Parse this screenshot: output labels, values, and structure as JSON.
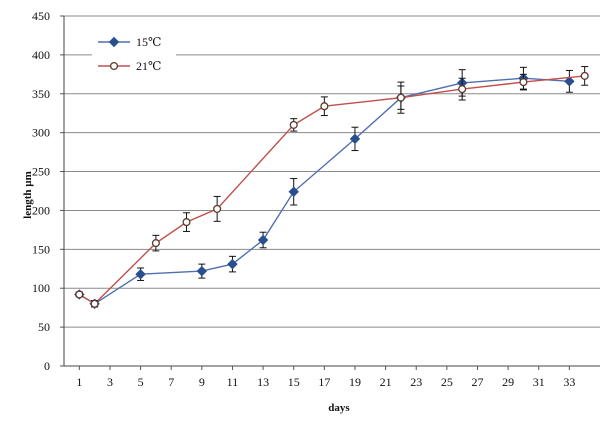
{
  "chart_data": {
    "type": "line",
    "title": "",
    "xlabel": "days",
    "ylabel": "length µm",
    "x_ticks": [
      1,
      3,
      5,
      7,
      9,
      11,
      13,
      15,
      17,
      19,
      21,
      23,
      25,
      27,
      29,
      31,
      33
    ],
    "x_tick_labels": [
      "1",
      "3",
      "5",
      "7",
      "9",
      "11",
      "13",
      "15",
      "17",
      "19",
      "21",
      "23",
      "25",
      "27",
      "29",
      "31",
      "33"
    ],
    "xlim": [
      0,
      35
    ],
    "ylim": [
      0,
      450
    ],
    "y_ticks": [
      0,
      50,
      100,
      150,
      200,
      250,
      300,
      350,
      400,
      450
    ],
    "y_tick_labels": [
      "0",
      "50",
      "100",
      "150",
      "200",
      "250",
      "300",
      "350",
      "400",
      "450"
    ],
    "grid": "horizontal",
    "legend": "top-left",
    "series": [
      {
        "name": "15℃",
        "color": "#4f6fb0",
        "marker": "diamond",
        "x": [
          1,
          2,
          5,
          9,
          11,
          13,
          15,
          19,
          22,
          26,
          30,
          33
        ],
        "y": [
          92,
          80,
          118,
          122,
          131,
          162,
          224,
          292,
          345,
          364,
          370,
          366
        ],
        "error": [
          3,
          4,
          8,
          9,
          10,
          10,
          17,
          15,
          20,
          17,
          14,
          14
        ]
      },
      {
        "name": "21℃",
        "color": "#c0504d",
        "marker": "circle-open",
        "x": [
          1,
          2,
          6,
          8,
          10,
          15,
          17,
          22,
          26,
          30,
          34
        ],
        "y": [
          92,
          80,
          158,
          185,
          202,
          310,
          334,
          345,
          356,
          365,
          373
        ],
        "error": [
          3,
          4,
          10,
          12,
          16,
          8,
          12,
          15,
          14,
          10,
          12
        ]
      }
    ]
  }
}
